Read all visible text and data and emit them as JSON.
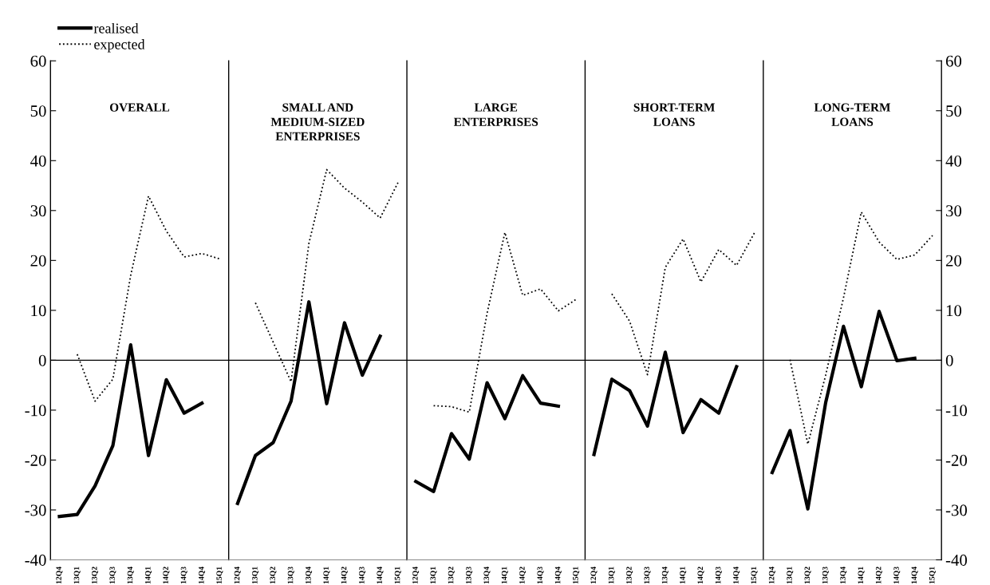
{
  "chart_data": [
    {
      "type": "line",
      "title": "OVERALL",
      "categories": [
        "12Q4",
        "13Q1",
        "13Q2",
        "13Q3",
        "13Q4",
        "14Q1",
        "14Q2",
        "14Q3",
        "14Q4",
        "15Q1"
      ],
      "ylim": [
        -40,
        60
      ],
      "yticks": [
        -40,
        -30,
        -20,
        -10,
        0,
        10,
        20,
        30,
        40,
        50,
        60
      ],
      "legend": "top left",
      "grid": false,
      "ref_lines": [
        {
          "axis": "y",
          "value": 0,
          "color": "#000000"
        }
      ],
      "series": [
        {
          "name": "realised",
          "color": "#000000",
          "line_style": "solid",
          "values": [
            -31.3,
            -30.9,
            -25.2,
            -17.1,
            3.1,
            -19.1,
            -3.9,
            -10.6,
            -8.6,
            null
          ]
        },
        {
          "name": "expected",
          "color": "#000000",
          "line_style": "dotted",
          "values": [
            null,
            1.2,
            -8.2,
            -3.8,
            17,
            32.9,
            25.9,
            20.7,
            21.4,
            20.3
          ]
        }
      ]
    },
    {
      "type": "line",
      "title": "SMALL AND\nMEDIUM-SIZED\nENTERPRISES",
      "categories": [
        "12Q4",
        "13Q1",
        "13Q2",
        "13Q3",
        "13Q4",
        "14Q1",
        "14Q2",
        "14Q3",
        "14Q4",
        "15Q1"
      ],
      "ylim": [
        -40,
        60
      ],
      "tick_labels": "x",
      "grid": false,
      "ref_lines": [
        {
          "axis": "y",
          "value": 0,
          "color": "#000000"
        }
      ],
      "series": [
        {
          "color": "#000000",
          "line_style": "solid",
          "values": [
            -28.7,
            -19.1,
            -16.5,
            -8.2,
            11.7,
            -8.7,
            7.5,
            -3.0,
            4.8,
            null
          ]
        },
        {
          "color": "#000000",
          "line_style": "dotted",
          "values": [
            null,
            11.5,
            3.6,
            -4.3,
            23.4,
            38.2,
            34.5,
            31.7,
            28.5,
            35.6
          ]
        }
      ]
    },
    {
      "type": "line",
      "title": "LARGE\nENTERPRISES",
      "categories": [
        "12Q4",
        "13Q1",
        "13Q2",
        "13Q3",
        "13Q4",
        "14Q1",
        "14Q2",
        "14Q3",
        "14Q4",
        "15Q1"
      ],
      "ylim": [
        -40,
        60
      ],
      "tick_labels": "x",
      "grid": false,
      "ref_lines": [
        {
          "axis": "y",
          "value": 0,
          "color": "#000000"
        }
      ],
      "series": [
        {
          "color": "#000000",
          "line_style": "solid",
          "values": [
            -24.3,
            -26.3,
            -14.7,
            -19.8,
            -4.5,
            -11.7,
            -3.1,
            -8.6,
            -9.2,
            null
          ]
        },
        {
          "color": "#000000",
          "line_style": "dotted",
          "values": [
            null,
            -9.1,
            -9.3,
            -10.4,
            9.4,
            25.6,
            13.0,
            14.3,
            9.9,
            12.2
          ]
        }
      ]
    },
    {
      "type": "line",
      "title": "SHORT-TERM\nLOANS",
      "categories": [
        "12Q4",
        "13Q1",
        "13Q2",
        "13Q3",
        "13Q4",
        "14Q1",
        "14Q2",
        "14Q3",
        "14Q4",
        "15Q1"
      ],
      "ylim": [
        -40,
        60
      ],
      "tick_labels": "x",
      "grid": false,
      "ref_lines": [
        {
          "axis": "y",
          "value": 0,
          "color": "#000000"
        }
      ],
      "series": [
        {
          "color": "#000000",
          "line_style": "solid",
          "values": [
            -18.9,
            -3.8,
            -6.1,
            -13.2,
            1.6,
            -14.5,
            -7.9,
            -10.6,
            -1.3,
            null
          ]
        },
        {
          "color": "#000000",
          "line_style": "dotted",
          "values": [
            null,
            13.3,
            7.8,
            -2.9,
            18.6,
            24.3,
            15.7,
            22.2,
            19.0,
            25.5
          ]
        }
      ]
    },
    {
      "type": "line",
      "title": "LONG-TERM\nLOANS",
      "categories": [
        "12Q4",
        "13Q1",
        "13Q2",
        "13Q3",
        "13Q4",
        "14Q1",
        "14Q2",
        "14Q3",
        "14Q4",
        "15Q1"
      ],
      "y2lim": [
        -40,
        60
      ],
      "y2ticks": [
        -40,
        -30,
        -20,
        -10,
        0,
        10,
        20,
        30,
        40,
        50,
        60
      ],
      "grid": false,
      "ref_lines": [
        {
          "axis": "y2",
          "value": 0,
          "color": "#000000"
        }
      ],
      "series": [
        {
          "color": "#000000",
          "line_style": "solid",
          "axis": "y2",
          "values": [
            -22.5,
            -14.1,
            -29.8,
            -8.5,
            6.8,
            -5.3,
            9.8,
            -0.1,
            0.4,
            null
          ]
        },
        {
          "color": "#000000",
          "line_style": "dotted",
          "axis": "y2",
          "values": [
            null,
            0.1,
            -16.8,
            -3,
            12.5,
            29.7,
            23.7,
            20.2,
            21.1,
            25.0
          ]
        }
      ]
    }
  ]
}
